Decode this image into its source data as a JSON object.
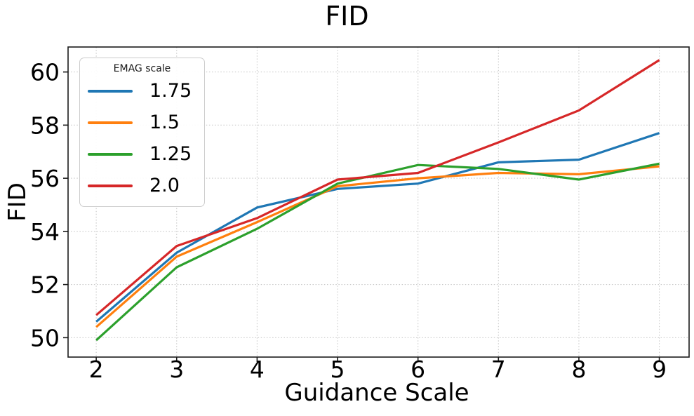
{
  "chart_data": {
    "type": "line",
    "title": "FID",
    "xlabel": "Guidance Scale",
    "ylabel": "FID",
    "x": [
      2,
      3,
      4,
      5,
      6,
      7,
      8,
      9
    ],
    "x_ticks": [
      2,
      3,
      4,
      5,
      6,
      7,
      8,
      9
    ],
    "y_ticks": [
      50,
      52,
      54,
      56,
      58,
      60
    ],
    "xlim": [
      1.65,
      9.37
    ],
    "ylim": [
      49.27,
      60.94
    ],
    "grid": "dotted both axes",
    "legend": {
      "title": "EMAG scale",
      "position": "upper left"
    },
    "series": [
      {
        "name": "1.75",
        "color": "#1f77b4",
        "values": [
          50.6,
          53.2,
          54.9,
          55.6,
          55.8,
          56.6,
          56.7,
          57.7
        ]
      },
      {
        "name": "1.5",
        "color": "#ff7f0e",
        "values": [
          50.4,
          53.05,
          54.35,
          55.7,
          56.0,
          56.2,
          56.15,
          56.45
        ]
      },
      {
        "name": "1.25",
        "color": "#2ca02c",
        "values": [
          49.9,
          52.65,
          54.1,
          55.8,
          56.5,
          56.35,
          55.95,
          56.55
        ]
      },
      {
        "name": "2.0",
        "color": "#d62728",
        "values": [
          50.85,
          53.45,
          54.5,
          55.95,
          56.2,
          57.35,
          58.55,
          60.45
        ]
      }
    ]
  },
  "colors": {
    "background": "#ffffff",
    "grid": "#c9c9c9",
    "spine": "#1a1a1a",
    "tick": "#1a1a1a",
    "text": "#000000",
    "legend_border": "#cccccc"
  }
}
